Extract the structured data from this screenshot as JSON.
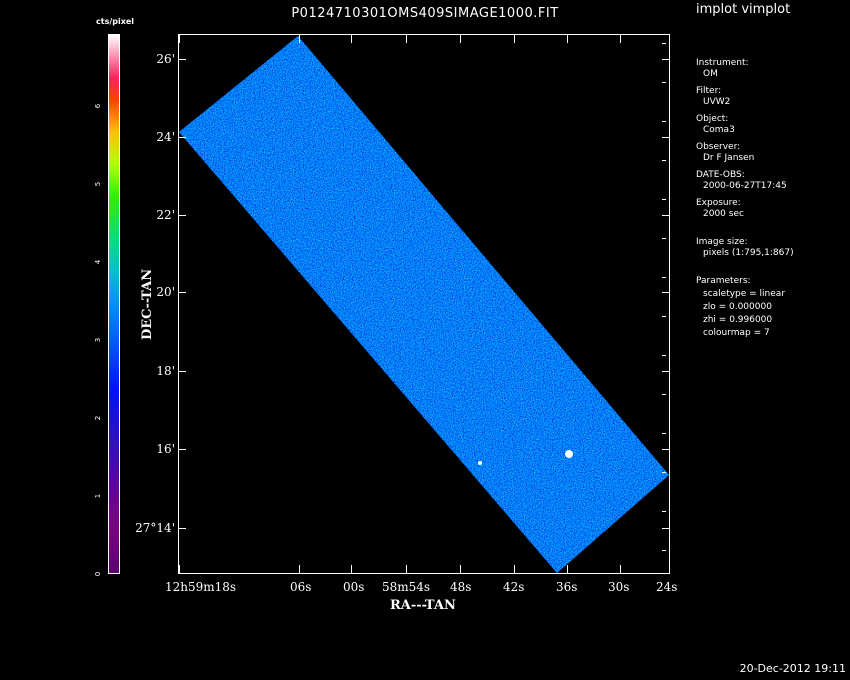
{
  "header": {
    "file_title": "P0124710301OMS409SIMAGE1000.FIT",
    "app_title": "implot vimplot"
  },
  "colorbar": {
    "unit": "cts/pixel",
    "ticks": [
      "0",
      "1",
      "2",
      "3",
      "4",
      "5",
      "6"
    ]
  },
  "axes": {
    "x_label": "RA---TAN",
    "y_label": "DEC--TAN",
    "y_ticks": [
      "26'",
      "24'",
      "22'",
      "20'",
      "18'",
      "16'",
      "27°14'"
    ],
    "x_ticks": [
      "12h59m18s",
      "06s",
      "00s",
      "58m54s",
      "48s",
      "42s",
      "36s",
      "30s",
      "24s"
    ]
  },
  "info_panel": {
    "instrument_label": "Instrument:",
    "instrument_value": "OM",
    "filter_label": "Filter:",
    "filter_value": "UVW2",
    "object_label": "Object:",
    "object_value": "Coma3",
    "observer_label": "Observer:",
    "observer_value": "Dr F Jansen",
    "date_label": "DATE-OBS:",
    "date_value": "2000-06-27T17:45",
    "exposure_label": "Exposure:",
    "exposure_value": "2000 sec",
    "image_size_label": "Image size:",
    "image_size_value": "pixels (1:795,1:867)",
    "parameters_label": "Parameters:",
    "scaletype": "scaletype = linear",
    "zlo": "zlo = 0.000000",
    "zhi": "zhi = 0.996000",
    "colourmap": "colourmap =   7"
  },
  "footer": {
    "timestamp": "20-Dec-2012 19:11"
  }
}
